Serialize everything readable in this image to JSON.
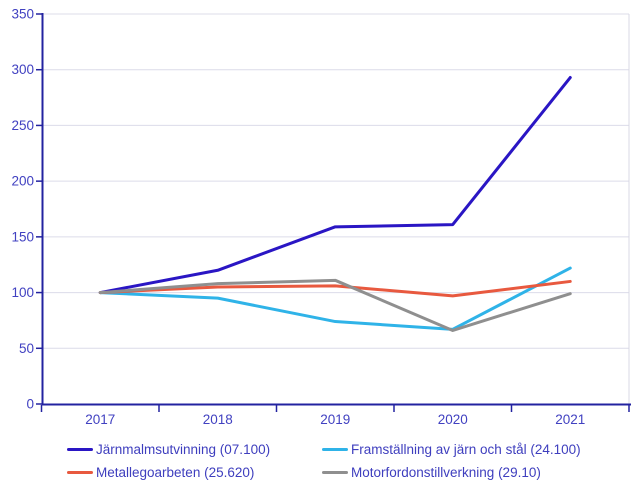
{
  "chart_data": {
    "type": "line",
    "title": "",
    "categories": [
      "2017",
      "2018",
      "2019",
      "2020",
      "2021"
    ],
    "series": [
      {
        "name": "Järnmalmsutvinning (07.100)",
        "color": "#2a16c4",
        "values": [
          100,
          120,
          159,
          161,
          293
        ]
      },
      {
        "name": "Metallegoarbeten (25.620)",
        "color": "#e8593f",
        "values": [
          100,
          105,
          106,
          97,
          110
        ]
      },
      {
        "name": "Framställning av järn och stål (24.100)",
        "color": "#2fb3e8",
        "values": [
          100,
          95,
          74,
          67,
          122
        ]
      },
      {
        "name": "Motorfordonstillverkning (29.10)",
        "color": "#8f8f8f",
        "values": [
          100,
          108,
          111,
          66,
          99
        ]
      }
    ],
    "xlabel": "",
    "ylabel": "",
    "ylim": [
      0,
      350
    ],
    "ytick_labels": [
      "0",
      "50",
      "100",
      "150",
      "200",
      "250",
      "300",
      "350"
    ],
    "ytick_values": [
      0,
      50,
      100,
      150,
      200,
      250,
      300,
      350
    ],
    "grid": true,
    "legend_position": "bottom",
    "z_order": [
      0,
      2,
      1,
      3
    ]
  },
  "style": {
    "axis_color": "#2323a0",
    "grid_color": "#dcdce9",
    "tick_label_color": "#4141c1",
    "plot_right_border_color": "#d8d8e4"
  }
}
